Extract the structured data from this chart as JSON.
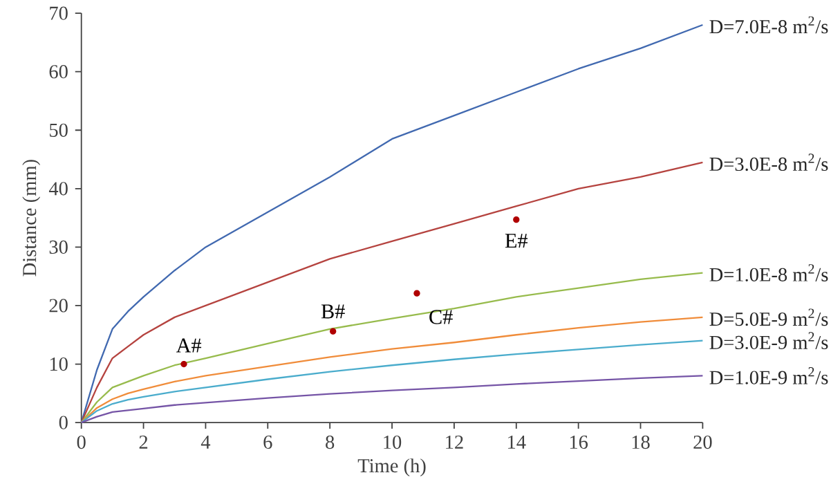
{
  "chart_data": {
    "type": "line",
    "xlabel": "Time (h)",
    "ylabel": "Distance (mm)",
    "x": [
      0,
      0.5,
      1,
      1.5,
      2,
      3,
      4,
      6,
      8,
      10,
      12,
      14,
      16,
      18,
      20
    ],
    "series": [
      {
        "name": "D=7.0E-8 m$^{2}$/s",
        "color": "#4169b0",
        "values": [
          0,
          9,
          16,
          19,
          21.5,
          26,
          30,
          36,
          42,
          48.5,
          52.5,
          56.5,
          60.5,
          64,
          68
        ]
      },
      {
        "name": "D=3.0E-8 m$^{2}$/s",
        "color": "#b5433f",
        "values": [
          0,
          6,
          11,
          13,
          15,
          18,
          20,
          24,
          28,
          31,
          34,
          37,
          40,
          42,
          44.5
        ]
      },
      {
        "name": "D=1.0E-8 m$^{2}$/s",
        "color": "#97bb4c",
        "values": [
          0,
          3.5,
          6,
          7,
          8,
          9.8,
          11,
          13.5,
          16,
          17.8,
          19.5,
          21.5,
          23,
          24.5,
          25.6
        ]
      },
      {
        "name": "D=5.0E-9 m$^{2}$/s",
        "color": "#f08c3a",
        "values": [
          0,
          2.5,
          4,
          5,
          5.7,
          7,
          8,
          9.6,
          11.2,
          12.6,
          13.7,
          15,
          16.2,
          17.2,
          18
        ]
      },
      {
        "name": "D=3.0E-9 m$^{2}$/s",
        "color": "#4aaccc",
        "values": [
          0,
          2,
          3.2,
          3.9,
          4.4,
          5.3,
          6,
          7.4,
          8.7,
          9.8,
          10.8,
          11.7,
          12.5,
          13.3,
          14
        ]
      },
      {
        "name": "D=1.0E-9 m$^{2}$/s",
        "color": "#7554a6",
        "values": [
          0,
          1,
          1.8,
          2.1,
          2.4,
          3,
          3.4,
          4.2,
          4.9,
          5.5,
          6,
          6.6,
          7.1,
          7.6,
          8
        ]
      },
      {
        "type": "scatter",
        "color": "#b00000",
        "marker": "circle",
        "x": [
          3.3,
          8.1,
          10.8,
          14
        ],
        "values": [
          10,
          15.6,
          22.1,
          34.7
        ]
      }
    ],
    "annotations": [
      {
        "text": "A#",
        "x": 3.3,
        "y": 10
      },
      {
        "text": "B#",
        "x": 8.1,
        "y": 15.6
      },
      {
        "text": "C#",
        "x": 10.8,
        "y": 22.1
      },
      {
        "text": "E#",
        "x": 14,
        "y": 34.7
      }
    ],
    "xlim": [
      0,
      20
    ],
    "xticks": [
      0,
      2,
      4,
      6,
      8,
      10,
      12,
      14,
      16,
      18,
      20
    ],
    "ylim": [
      0,
      70
    ],
    "yticks": [
      0,
      10,
      20,
      30,
      40,
      50,
      60,
      70
    ],
    "grid": false,
    "legend": false
  }
}
